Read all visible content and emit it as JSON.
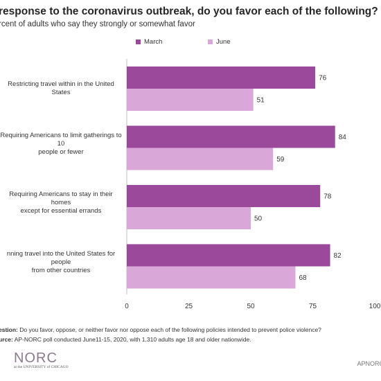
{
  "header": {
    "title": "response to the coronavirus outbreak, do you favor each of the following?",
    "subtitle": "rcent of adults who say they strongly or somewhat favor"
  },
  "colors": {
    "march": "#9b4a9b",
    "june": "#d9a8d9",
    "axis": "#bfbfbf",
    "logo": "#8a7a8c"
  },
  "chart_data": {
    "type": "bar",
    "orientation": "horizontal",
    "categories": [
      "Restricting travel within in the United States",
      "Requiring Americans to limit gatherings to 10 people or fewer",
      "Requiring Americans to stay in their homes except for essential errands",
      "nning travel into the United States for people from other countries"
    ],
    "category_lines": [
      [
        "Restricting travel within in the United States"
      ],
      [
        "Requiring Americans to limit gatherings to 10",
        "people or fewer"
      ],
      [
        "Requiring Americans to stay in their homes",
        "except for essential errands"
      ],
      [
        "nning travel into the United States for people",
        "from other countries"
      ]
    ],
    "series": [
      {
        "name": "March",
        "values": [
          76,
          84,
          78,
          82
        ]
      },
      {
        "name": "June",
        "values": [
          51,
          59,
          50,
          68
        ]
      }
    ],
    "xlim": [
      0,
      100
    ],
    "xticks": [
      "0",
      "25",
      "50",
      "75",
      "100"
    ],
    "grid": false,
    "legend_position": "top"
  },
  "footer": {
    "question_label": "estion:",
    "question_text": " Do you favor, oppose, or neither favor nor oppose each of the following policies  intended to prevent police violence?",
    "source_label": "urce:",
    "source_text": " AP-NORC poll conducted June11-15, 2020, with 1,310 adults age 18 and older nationwide."
  },
  "logo": {
    "main": "NORC",
    "sub": "at the UNIVERSITY of CHICAGO"
  },
  "brand_right": "APNORC"
}
